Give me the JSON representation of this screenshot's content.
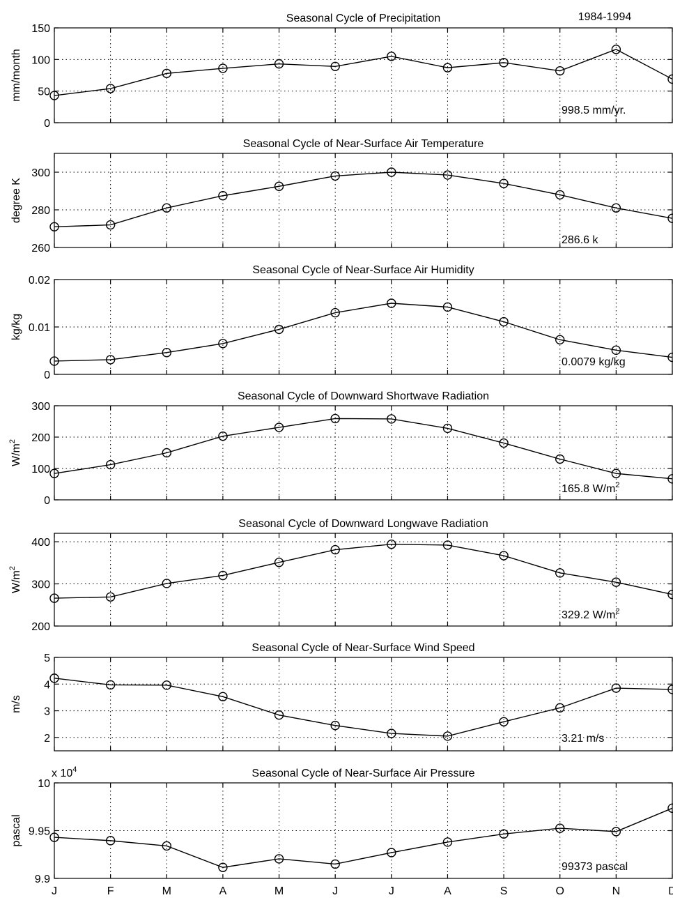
{
  "period_label": "1984-1994",
  "chart_data": [
    {
      "type": "line",
      "title": "Seasonal Cycle of Precipitation",
      "ylabel": "mm/month",
      "ylabel_sup": "",
      "annotation": "998.5 mm/yr.",
      "annotation_sup": "",
      "exponent_label": "",
      "exponent_sup": "",
      "ylim": [
        0,
        150
      ],
      "yticks": [
        0,
        50,
        100,
        150
      ],
      "ytick_labels": [
        "0",
        "50",
        "100",
        "150"
      ],
      "categories": [
        "J",
        "F",
        "M",
        "A",
        "M",
        "J",
        "J",
        "A",
        "S",
        "O",
        "N",
        "D"
      ],
      "values": [
        43,
        54,
        78,
        86,
        93,
        89,
        105,
        87,
        95,
        82,
        116,
        69
      ]
    },
    {
      "type": "line",
      "title": "Seasonal Cycle of Near-Surface Air Temperature",
      "ylabel": "degree K",
      "ylabel_sup": "",
      "annotation": "286.6 k",
      "annotation_sup": "",
      "exponent_label": "",
      "exponent_sup": "",
      "ylim": [
        260,
        310
      ],
      "yticks": [
        260,
        280,
        300
      ],
      "ytick_labels": [
        "260",
        "280",
        "300"
      ],
      "categories": [
        "J",
        "F",
        "M",
        "A",
        "M",
        "J",
        "J",
        "A",
        "S",
        "O",
        "N",
        "D"
      ],
      "values": [
        271,
        272,
        281,
        287.5,
        292.5,
        298,
        300,
        298.5,
        294,
        288,
        281,
        275.5
      ]
    },
    {
      "type": "line",
      "title": "Seasonal Cycle of Near-Surface Air Humidity",
      "ylabel": "kg/kg",
      "ylabel_sup": "",
      "annotation": "0.0079 kg/kg",
      "annotation_sup": "",
      "exponent_label": "",
      "exponent_sup": "",
      "ylim": [
        0,
        0.02
      ],
      "yticks": [
        0,
        0.01,
        0.02
      ],
      "ytick_labels": [
        "0",
        "0.01",
        "0.02"
      ],
      "categories": [
        "J",
        "F",
        "M",
        "A",
        "M",
        "J",
        "J",
        "A",
        "S",
        "O",
        "N",
        "D"
      ],
      "values": [
        0.0028,
        0.0031,
        0.0046,
        0.0065,
        0.0095,
        0.013,
        0.015,
        0.0142,
        0.0111,
        0.0073,
        0.0051,
        0.0036
      ]
    },
    {
      "type": "line",
      "title": "Seasonal Cycle of Downward Shortwave Radiation",
      "ylabel": "W/m",
      "ylabel_sup": "2",
      "annotation": "165.8 W/m",
      "annotation_sup": "2",
      "exponent_label": "",
      "exponent_sup": "",
      "ylim": [
        0,
        300
      ],
      "yticks": [
        0,
        100,
        200,
        300
      ],
      "ytick_labels": [
        "0",
        "100",
        "200",
        "300"
      ],
      "categories": [
        "J",
        "F",
        "M",
        "A",
        "M",
        "J",
        "J",
        "A",
        "S",
        "O",
        "N",
        "D"
      ],
      "values": [
        84,
        112,
        150,
        203,
        231,
        259,
        258,
        228,
        181,
        130,
        84,
        67
      ]
    },
    {
      "type": "line",
      "title": "Seasonal Cycle of Downward Longwave Radiation",
      "ylabel": "W/m",
      "ylabel_sup": "2",
      "annotation": "329.2 W/m",
      "annotation_sup": "2",
      "exponent_label": "",
      "exponent_sup": "",
      "ylim": [
        200,
        420
      ],
      "yticks": [
        200,
        300,
        400
      ],
      "ytick_labels": [
        "200",
        "300",
        "400"
      ],
      "categories": [
        "J",
        "F",
        "M",
        "A",
        "M",
        "J",
        "J",
        "A",
        "S",
        "O",
        "N",
        "D"
      ],
      "values": [
        266,
        269,
        301,
        320,
        351,
        381,
        394,
        392,
        367,
        326,
        304,
        275
      ]
    },
    {
      "type": "line",
      "title": "Seasonal Cycle of Near-Surface Wind Speed",
      "ylabel": "m/s",
      "ylabel_sup": "",
      "annotation": "3.21 m/s",
      "annotation_sup": "",
      "exponent_label": "",
      "exponent_sup": "",
      "ylim": [
        1.5,
        5
      ],
      "yticks": [
        2,
        3,
        4,
        5
      ],
      "ytick_labels": [
        "2",
        "3",
        "4",
        "5"
      ],
      "categories": [
        "J",
        "F",
        "M",
        "A",
        "M",
        "J",
        "J",
        "A",
        "S",
        "O",
        "N",
        "D"
      ],
      "values": [
        4.22,
        3.97,
        3.96,
        3.53,
        2.84,
        2.45,
        2.15,
        2.05,
        2.59,
        3.11,
        3.85,
        3.8
      ]
    },
    {
      "type": "line",
      "title": "Seasonal Cycle of Near-Surface Air Pressure",
      "ylabel": "pascal",
      "ylabel_sup": "",
      "annotation": "99373 pascal",
      "annotation_sup": "",
      "exponent_label": "x 10",
      "exponent_sup": "4",
      "ylim": [
        99000,
        100000
      ],
      "yticks": [
        99000,
        99500,
        100000
      ],
      "ytick_labels": [
        "9.9",
        "9.95",
        "10"
      ],
      "categories": [
        "J",
        "F",
        "M",
        "A",
        "M",
        "J",
        "J",
        "A",
        "S",
        "O",
        "N",
        "D"
      ],
      "values": [
        99430,
        99395,
        99340,
        99115,
        99205,
        99150,
        99270,
        99380,
        99465,
        99525,
        99490,
        99735
      ]
    }
  ]
}
